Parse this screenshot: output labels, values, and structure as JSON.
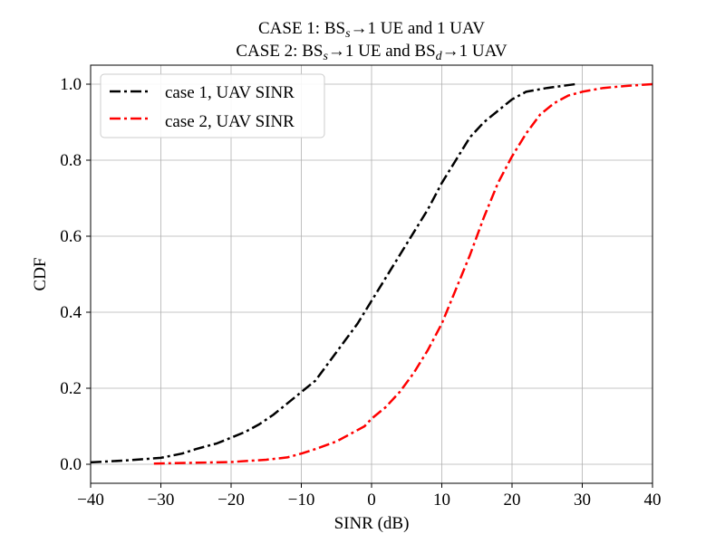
{
  "chart_data": {
    "type": "line",
    "title_line1": {
      "prefix": "CASE 1: BS",
      "sub": "s",
      "suffix": "→1 UE and 1 UAV"
    },
    "title_line2": {
      "prefix": "CASE 2: BS",
      "sub1": "s",
      "middle": "→1 UE and BS",
      "sub2": "d",
      "suffix": "→1 UAV"
    },
    "xlabel": "SINR (dB)",
    "ylabel": "CDF",
    "xlim": [
      -40,
      40
    ],
    "ylim": [
      -0.05,
      1.05
    ],
    "xticks": [
      -40,
      -30,
      -20,
      -10,
      0,
      10,
      20,
      30,
      40
    ],
    "xtick_labels": [
      "−40",
      "−30",
      "−20",
      "−10",
      "0",
      "10",
      "20",
      "30",
      "40"
    ],
    "yticks": [
      0.0,
      0.2,
      0.4,
      0.6,
      0.8,
      1.0
    ],
    "ytick_labels": [
      "0.0",
      "0.2",
      "0.4",
      "0.6",
      "0.8",
      "1.0"
    ],
    "grid": true,
    "legend_position": "top-left",
    "series": [
      {
        "name": "case 1, UAV SINR",
        "color": "#000000",
        "linestyle": "dashdot",
        "points": [
          [
            -40,
            0.005
          ],
          [
            -35,
            0.01
          ],
          [
            -30,
            0.017
          ],
          [
            -27,
            0.028
          ],
          [
            -25,
            0.04
          ],
          [
            -22,
            0.055
          ],
          [
            -20,
            0.07
          ],
          [
            -18,
            0.085
          ],
          [
            -16,
            0.105
          ],
          [
            -14,
            0.13
          ],
          [
            -12,
            0.16
          ],
          [
            -10,
            0.19
          ],
          [
            -8,
            0.22
          ],
          [
            -6,
            0.27
          ],
          [
            -4,
            0.32
          ],
          [
            -2,
            0.37
          ],
          [
            0,
            0.43
          ],
          [
            2,
            0.49
          ],
          [
            4,
            0.55
          ],
          [
            6,
            0.61
          ],
          [
            8,
            0.67
          ],
          [
            10,
            0.74
          ],
          [
            12,
            0.8
          ],
          [
            14,
            0.86
          ],
          [
            16,
            0.9
          ],
          [
            18,
            0.93
          ],
          [
            20,
            0.96
          ],
          [
            22,
            0.98
          ],
          [
            25,
            0.99
          ],
          [
            29,
            1.0
          ]
        ]
      },
      {
        "name": "case 2, UAV SINR",
        "color": "#ff0000",
        "linestyle": "dashdot",
        "points": [
          [
            -31,
            0.002
          ],
          [
            -25,
            0.004
          ],
          [
            -20,
            0.006
          ],
          [
            -15,
            0.012
          ],
          [
            -12,
            0.018
          ],
          [
            -10,
            0.028
          ],
          [
            -8,
            0.04
          ],
          [
            -5,
            0.06
          ],
          [
            -3,
            0.08
          ],
          [
            -1,
            0.1
          ],
          [
            0,
            0.12
          ],
          [
            2,
            0.15
          ],
          [
            4,
            0.19
          ],
          [
            6,
            0.24
          ],
          [
            8,
            0.3
          ],
          [
            10,
            0.37
          ],
          [
            12,
            0.46
          ],
          [
            14,
            0.55
          ],
          [
            16,
            0.65
          ],
          [
            18,
            0.74
          ],
          [
            20,
            0.81
          ],
          [
            22,
            0.87
          ],
          [
            24,
            0.92
          ],
          [
            26,
            0.95
          ],
          [
            28,
            0.97
          ],
          [
            30,
            0.98
          ],
          [
            33,
            0.99
          ],
          [
            36,
            0.995
          ],
          [
            40,
            1.0
          ]
        ]
      }
    ]
  }
}
